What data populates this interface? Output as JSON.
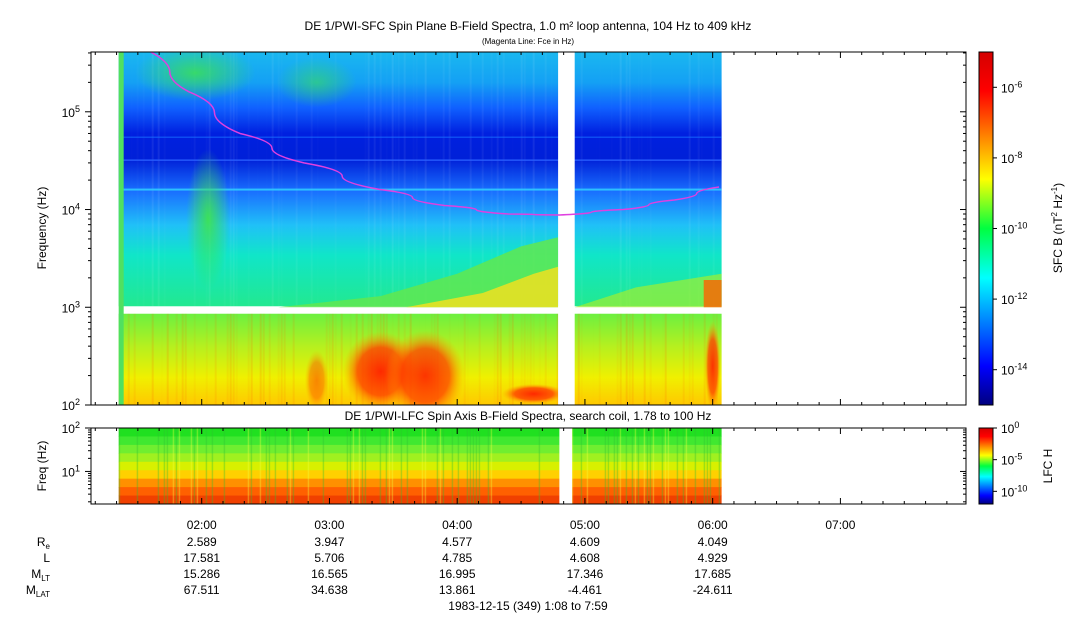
{
  "chart_data": [
    {
      "type": "heatmap",
      "title": "DE 1/PWI-SFC  Spin Plane B-Field Spectra, 1.0 m² loop antenna, 104 Hz to 409 kHz",
      "subtitle": "(Magenta Line: Fce in Hz)",
      "ylabel": "Frequency (Hz)",
      "yscale": "log",
      "ylim": [
        100,
        409000
      ],
      "y_ticks": [
        {
          "value": 100,
          "label": "10",
          "exp": "2"
        },
        {
          "value": 1000,
          "label": "10",
          "exp": "3"
        },
        {
          "value": 10000,
          "label": "10",
          "exp": "4"
        },
        {
          "value": 100000,
          "label": "10",
          "exp": "5"
        }
      ],
      "colorbar": {
        "label_pre": "SFC B (nT",
        "label_exp1": "2",
        "label_mid": " Hz",
        "label_exp2": "-1",
        "label_post": ")",
        "scale": "log",
        "range_log10": [
          -15,
          -5
        ],
        "ticks": [
          {
            "value": -6,
            "label": "10",
            "exp": "-6"
          },
          {
            "value": -8,
            "label": "10",
            "exp": "-8"
          },
          {
            "value": -10,
            "label": "10",
            "exp": "-10"
          },
          {
            "value": -12,
            "label": "10",
            "exp": "-12"
          },
          {
            "value": -14,
            "label": "10",
            "exp": "-14"
          }
        ]
      },
      "data_time_range_hours": [
        1.35,
        6.07
      ],
      "gaps_hours": [
        [
          4.79,
          4.92
        ]
      ],
      "band_gap_hz": [
        1000,
        900
      ],
      "fce_line": {
        "name": "Fce",
        "color": "#e040e0",
        "points": [
          {
            "t": 1.6,
            "f": 409000
          },
          {
            "t": 1.9,
            "f": 160000
          },
          {
            "t": 2.3,
            "f": 60000
          },
          {
            "t": 2.8,
            "f": 30000
          },
          {
            "t": 3.4,
            "f": 16000
          },
          {
            "t": 3.9,
            "f": 11000
          },
          {
            "t": 4.4,
            "f": 9000
          },
          {
            "t": 4.8,
            "f": 8800
          },
          {
            "t": 5.3,
            "f": 10000
          },
          {
            "t": 5.7,
            "f": 12500
          },
          {
            "t": 6.05,
            "f": 17000
          }
        ]
      }
    },
    {
      "type": "heatmap",
      "title": "DE 1/PWI-LFC  Spin Axis B-Field Spectra, search coil, 1.78 to 100 Hz",
      "ylabel": "Freq (Hz)",
      "yscale": "log",
      "ylim": [
        1.78,
        100
      ],
      "y_ticks": [
        {
          "value": 10,
          "label": "10",
          "exp": "1"
        },
        {
          "value": 100,
          "label": "10",
          "exp": "2"
        }
      ],
      "colorbar": {
        "label": "LFC H",
        "scale": "log",
        "range_log10": [
          -12,
          0
        ],
        "ticks": [
          {
            "value": 0,
            "label": "10",
            "exp": "0"
          },
          {
            "value": -5,
            "label": "10",
            "exp": "-5"
          },
          {
            "value": -10,
            "label": "10",
            "exp": "-10"
          }
        ]
      },
      "data_time_range_hours": [
        1.35,
        6.07
      ],
      "gaps_hours": [
        [
          4.8,
          4.9
        ]
      ]
    }
  ],
  "x_axis": {
    "range_hours": [
      1.1333,
      7.9833
    ],
    "ticks": [
      {
        "value": 2,
        "label": "02:00"
      },
      {
        "value": 3,
        "label": "03:00"
      },
      {
        "value": 4,
        "label": "04:00"
      },
      {
        "value": 5,
        "label": "05:00"
      },
      {
        "value": 6,
        "label": "06:00"
      },
      {
        "value": 7,
        "label": "07:00"
      }
    ],
    "minor_step_hours": 0.16667
  },
  "ephemeris": {
    "times": [
      2,
      3,
      4,
      5,
      6
    ],
    "rows": [
      {
        "label": "R",
        "sub": "e",
        "values": [
          "2.589",
          "3.947",
          "4.577",
          "4.609",
          "4.049"
        ]
      },
      {
        "label": "L",
        "sub": "",
        "values": [
          "17.581",
          "5.706",
          "4.785",
          "4.608",
          "4.929"
        ]
      },
      {
        "label": "M",
        "sub": "LT",
        "values": [
          "15.286",
          "16.565",
          "16.995",
          "17.346",
          "17.685"
        ]
      },
      {
        "label": "M",
        "sub": "LAT",
        "values": [
          "67.511",
          "34.638",
          "13.861",
          "-4.461",
          "-24.611"
        ]
      }
    ]
  },
  "footer": "1983-12-15 (349) 1:08 to 7:59"
}
